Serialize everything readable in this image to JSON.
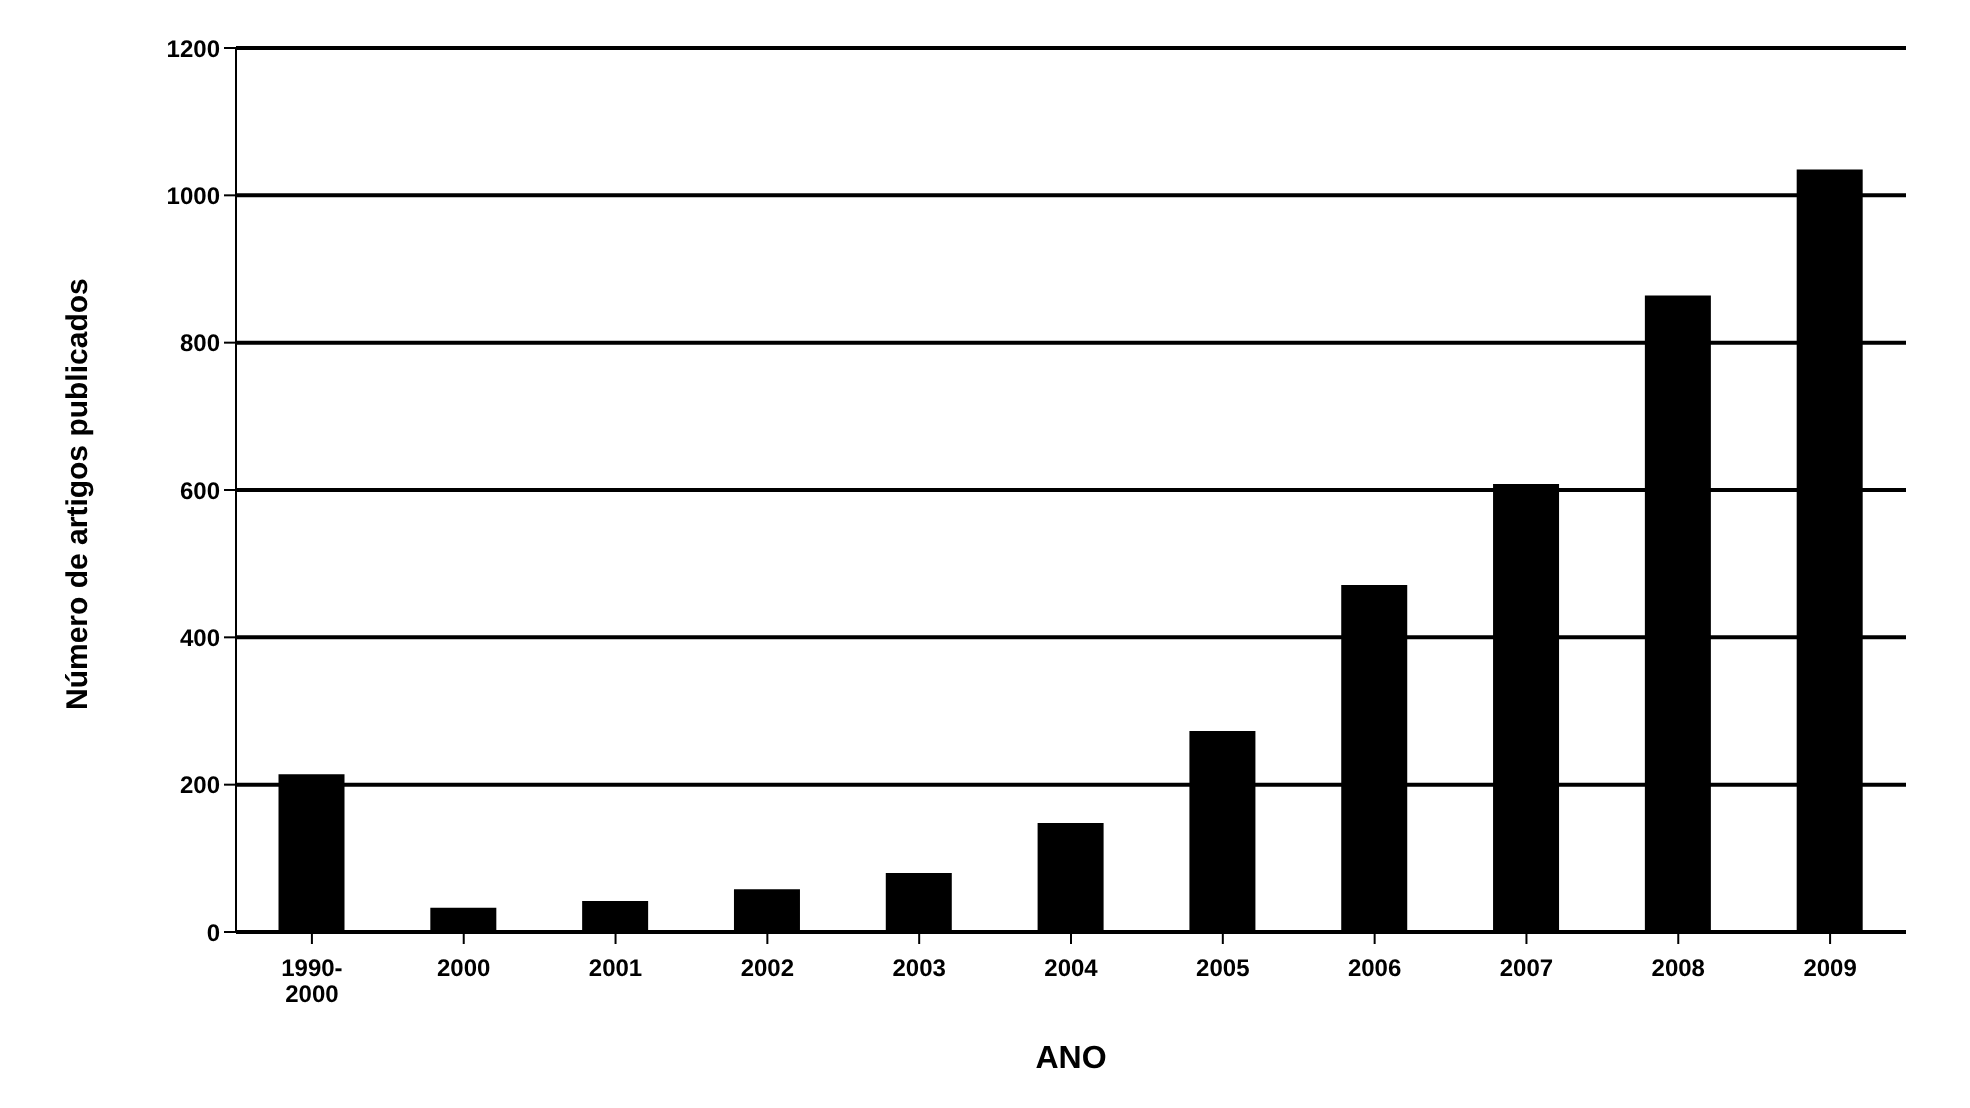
{
  "chart_data": {
    "type": "bar",
    "xlabel": "ANO",
    "ylabel": "Número de artigos publicados",
    "categories": [
      "1990-\n2000",
      "2000",
      "2001",
      "2002",
      "2003",
      "2004",
      "2005",
      "2006",
      "2007",
      "2008",
      "2009"
    ],
    "values": [
      214,
      33,
      42,
      58,
      80,
      148,
      273,
      471,
      608,
      864,
      1035
    ],
    "color": "#000000",
    "ylim": [
      0,
      1200
    ],
    "yticks": [
      0,
      200,
      400,
      600,
      800,
      1000,
      1200
    ],
    "grid": "y"
  }
}
